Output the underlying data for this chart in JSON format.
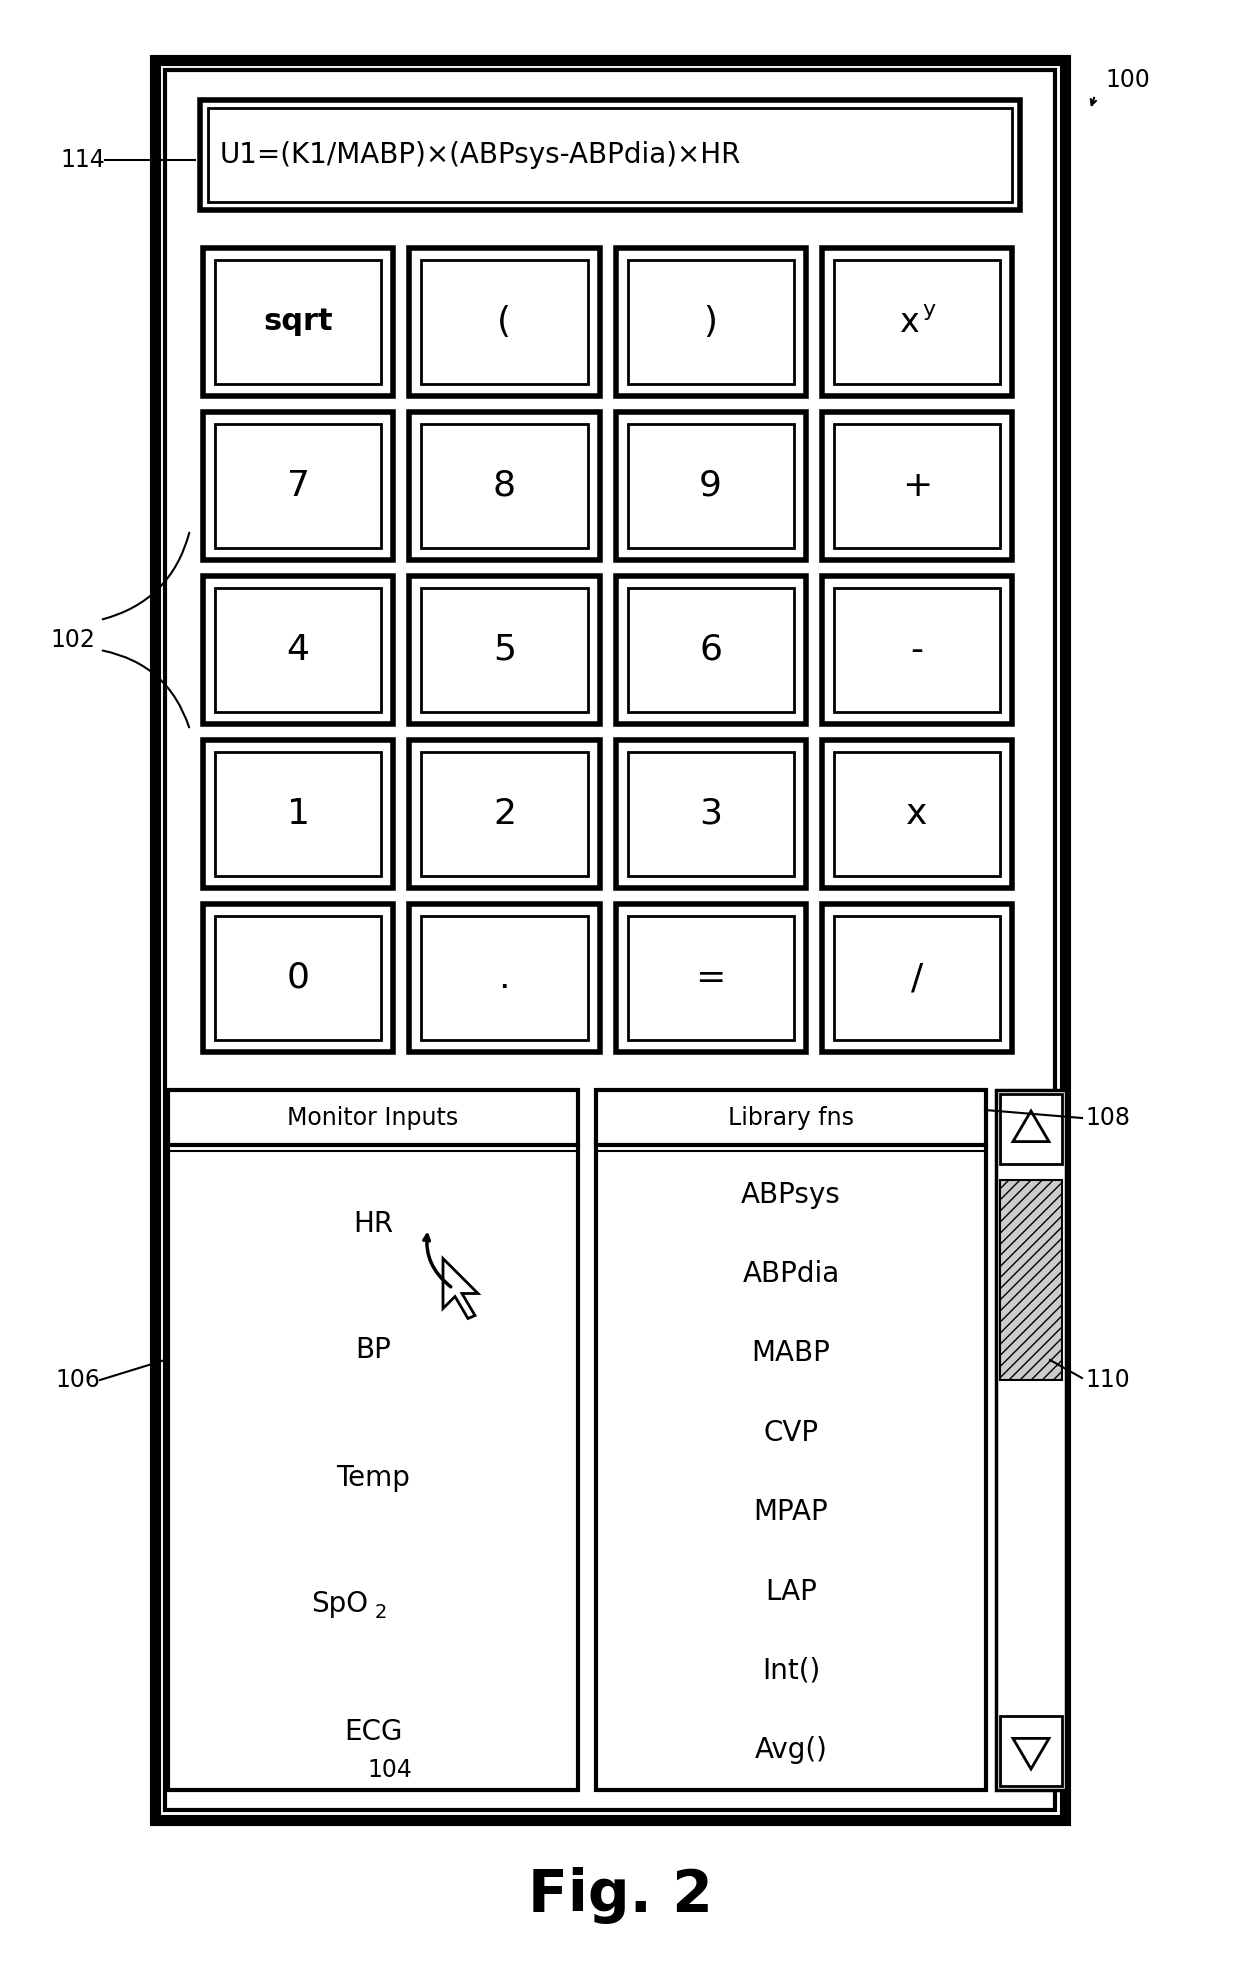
{
  "bg_color": "#ffffff",
  "formula_text": "U1=(K1/MABP)×(ABPsys-ABPdia)×HR",
  "keypad_rows": [
    [
      "sqrt",
      "(",
      ")",
      "xy"
    ],
    [
      "7",
      "8",
      "9",
      "+"
    ],
    [
      "4",
      "5",
      "6",
      "-"
    ],
    [
      "1",
      "2",
      "3",
      "x"
    ],
    [
      "0",
      ".",
      "=",
      "/"
    ]
  ],
  "monitor_inputs_label": "Monitor Inputs",
  "monitor_inputs": [
    "HR",
    "BP",
    "Temp",
    "SpO2",
    "ECG"
  ],
  "library_fns_label": "Library fns",
  "library_fns": [
    "ABPsys",
    "ABPdia",
    "MABP",
    "CVP",
    "MPAP",
    "LAP",
    "Int()",
    "Avg()"
  ],
  "title": "Fig. 2"
}
